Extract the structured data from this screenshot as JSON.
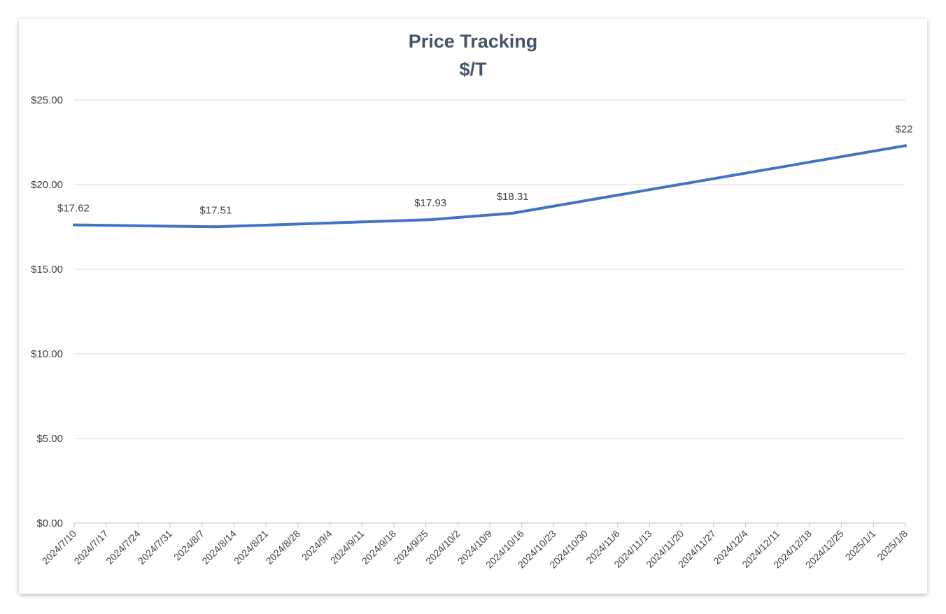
{
  "chart_data": {
    "type": "line",
    "title": "Price Tracking",
    "subtitle": "$/T",
    "x": [
      "2024/7/10",
      "2024/8/10",
      "2024/9/26",
      "2024/10/14",
      "2025/1/8"
    ],
    "series": [
      {
        "values": [
          17.62,
          17.51,
          17.93,
          18.31,
          22.3
        ],
        "data_labels": [
          "$17.62",
          "$17.51",
          "$17.93",
          "$18.31",
          "$22"
        ]
      }
    ],
    "x_tick_labels": [
      "2024/7/10",
      "2024/7/17",
      "2024/7/24",
      "2024/7/31",
      "2024/8/7",
      "2024/8/14",
      "2024/8/21",
      "2024/8/28",
      "2024/9/4",
      "2024/9/11",
      "2024/9/18",
      "2024/9/25",
      "2024/10/2",
      "2024/10/9",
      "2024/10/16",
      "2024/10/23",
      "2024/10/30",
      "2024/11/6",
      "2024/11/13",
      "2024/11/20",
      "2024/11/27",
      "2024/12/4",
      "2024/12/11",
      "2024/12/18",
      "2024/12/25",
      "2025/1/1",
      "2025/1/8"
    ],
    "y_tick_labels": [
      "$0.00",
      "$5.00",
      "$10.00",
      "$15.00",
      "$20.00",
      "$25.00"
    ],
    "y_ticks": [
      0,
      5,
      10,
      15,
      20,
      25
    ],
    "xlim": [
      "2024/7/10",
      "2025/1/8"
    ],
    "ylim": [
      0,
      25
    ],
    "grid": true,
    "legend": "none",
    "colors": {
      "line": "#4472c4",
      "grid": "#d9d9d9",
      "title": "#44546a",
      "text": "#404040"
    }
  }
}
